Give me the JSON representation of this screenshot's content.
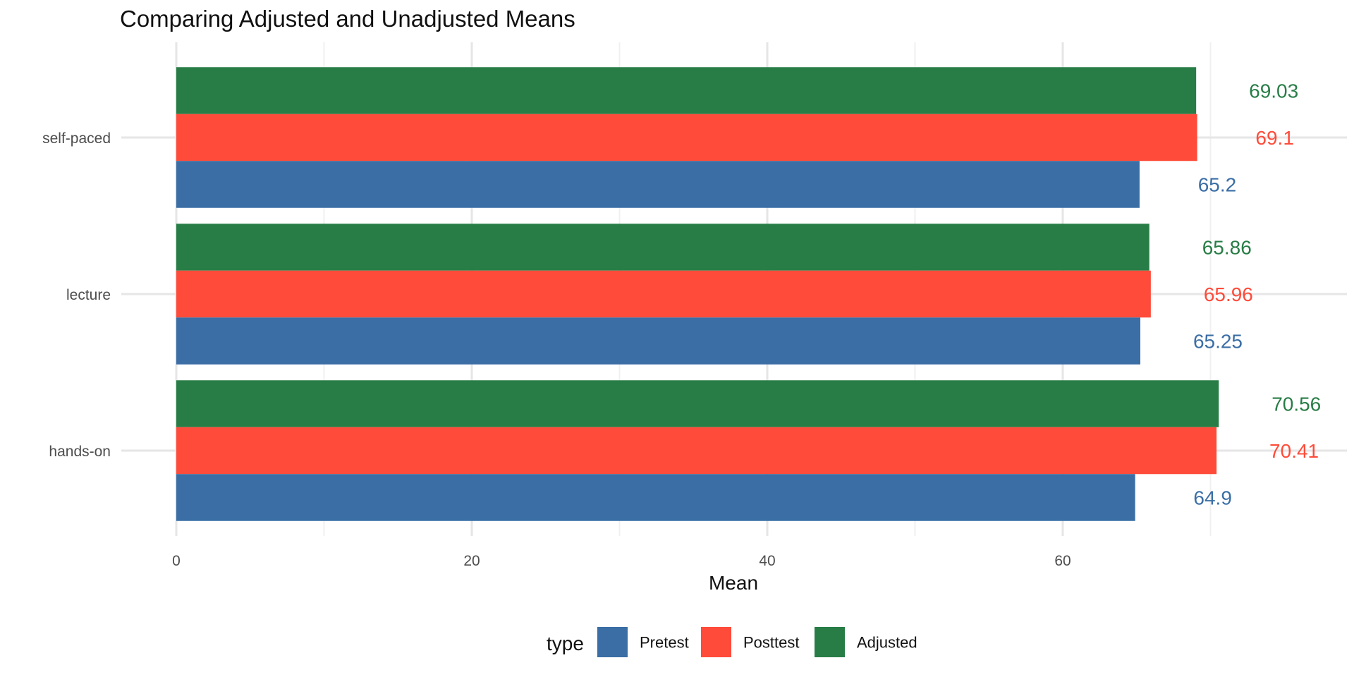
{
  "chart_data": {
    "type": "bar",
    "orientation": "horizontal",
    "title": "Comparing Adjusted and Unadjusted Means",
    "xlabel": "Mean",
    "ylabel": "",
    "categories": [
      "hands-on",
      "lecture",
      "self-paced"
    ],
    "series": [
      {
        "name": "Pretest",
        "color": "#3A6EA5",
        "values": [
          64.9,
          65.25,
          65.2
        ],
        "labels": [
          "64.9",
          "65.25",
          "65.2"
        ]
      },
      {
        "name": "Posttest",
        "color": "#FF4B3A",
        "values": [
          70.41,
          65.96,
          69.1
        ],
        "labels": [
          "70.41",
          "65.96",
          "69.1"
        ]
      },
      {
        "name": "Adjusted",
        "color": "#287D46",
        "values": [
          70.56,
          65.86,
          69.03
        ],
        "labels": [
          "70.56",
          "65.86",
          "69.03"
        ]
      }
    ],
    "xlim": [
      0,
      79.5
    ],
    "xticks": [
      0,
      20,
      40,
      60
    ],
    "xtick_labels": [
      "0",
      "20",
      "40",
      "60"
    ],
    "grid": true,
    "legend": {
      "title": "type",
      "placement": "bottom",
      "entries": [
        "Pretest",
        "Posttest",
        "Adjusted"
      ]
    }
  }
}
